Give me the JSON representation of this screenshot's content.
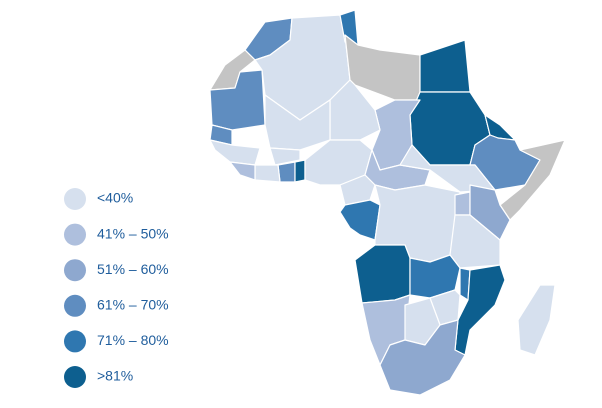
{
  "legend": {
    "items": [
      {
        "label": "<40%",
        "color": "#d6e0ee"
      },
      {
        "label": "41% – 50%",
        "color": "#aebfdd"
      },
      {
        "label": "51% – 60%",
        "color": "#8ea8cf"
      },
      {
        "label": "61% – 70%",
        "color": "#5f8dc0"
      },
      {
        "label": "71% – 80%",
        "color": "#2f77b0"
      },
      {
        "label": ">81%",
        "color": "#0d5f8f"
      }
    ]
  }
}
